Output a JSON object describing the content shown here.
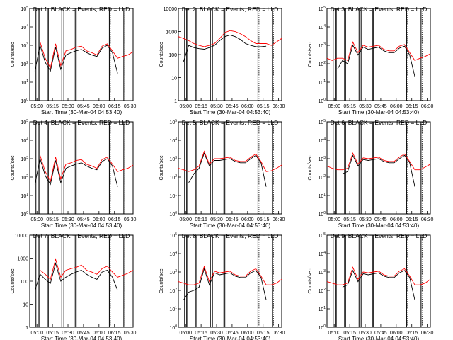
{
  "figure": {
    "ylabel": "Counts/sec",
    "xlabel": "Start Time (30-Mar-04 04:53:40)",
    "x_tick_labels": [
      "05:00",
      "05:15",
      "05:30",
      "05:45",
      "06:00",
      "06:15",
      "06:30"
    ],
    "colors": {
      "events": "#000000",
      "lld": "#ff0000"
    }
  },
  "chart_data": [
    {
      "type": "line",
      "title": "Det 1: BLACK = Events, RED = LLD",
      "ylim": [
        1,
        100000
      ],
      "ytick_labels": [
        "10^0",
        "10^1",
        "10^2",
        "10^3",
        "10^4",
        "10^5"
      ],
      "log_y": true,
      "x": [
        "04:53",
        "04:58",
        "05:03",
        "05:08",
        "05:13",
        "05:18",
        "05:23",
        "05:28",
        "05:33",
        "05:38",
        "05:43",
        "05:48",
        "05:53",
        "05:58",
        "06:03",
        "06:08",
        "06:13",
        "06:18",
        "06:23",
        "06:28",
        "06:33"
      ],
      "series": [
        {
          "name": "Events",
          "values": [
            null,
            40,
            1000,
            120,
            40,
            800,
            50,
            300,
            400,
            500,
            600,
            400,
            300,
            250,
            700,
            1000,
            400,
            30,
            null,
            null,
            null
          ]
        },
        {
          "name": "LLD",
          "values": [
            null,
            null,
            1500,
            200,
            60,
            1200,
            80,
            500,
            600,
            800,
            900,
            500,
            400,
            300,
            900,
            1200,
            500,
            200,
            250,
            300,
            450
          ]
        }
      ]
    },
    {
      "type": "line",
      "title": "Det 2: BLACK = Events, RED = LLD",
      "ylim": [
        1,
        10000
      ],
      "ytick_labels": [
        "1",
        "10",
        "100",
        "1000",
        "10000"
      ],
      "log_y": true,
      "x": [
        "04:53",
        "04:58",
        "05:03",
        "05:08",
        "05:13",
        "05:18",
        "05:23",
        "05:28",
        "05:33",
        "05:38",
        "05:43",
        "05:48",
        "05:53",
        "05:58",
        "06:03",
        "06:08",
        "06:13",
        "06:18",
        "06:23",
        "06:28",
        "06:33"
      ],
      "series": [
        {
          "name": "Events",
          "values": [
            null,
            50,
            250,
            200,
            180,
            170,
            200,
            250,
            400,
            600,
            700,
            600,
            450,
            300,
            250,
            220,
            220,
            230,
            null,
            null,
            null
          ]
        },
        {
          "name": "LLD",
          "values": [
            600,
            500,
            400,
            300,
            250,
            220,
            250,
            300,
            500,
            900,
            1100,
            1000,
            800,
            600,
            400,
            300,
            300,
            300,
            250,
            350,
            500
          ]
        }
      ]
    },
    {
      "type": "line",
      "title": "Det 3: BLACK = Events, RED = LLD",
      "ylim": [
        1,
        100000
      ],
      "ytick_labels": [
        "10^0",
        "10^1",
        "10^2",
        "10^3",
        "10^4",
        "10^5"
      ],
      "log_y": true,
      "x": [
        "04:53",
        "04:58",
        "05:03",
        "05:08",
        "05:13",
        "05:18",
        "05:23",
        "05:28",
        "05:33",
        "05:38",
        "05:43",
        "05:48",
        "05:53",
        "05:58",
        "06:03",
        "06:08",
        "06:13",
        "06:18",
        "06:23",
        "06:28",
        "06:33"
      ],
      "series": [
        {
          "name": "Events",
          "values": [
            null,
            null,
            50,
            150,
            100,
            1000,
            300,
            800,
            600,
            700,
            800,
            500,
            400,
            400,
            700,
            900,
            300,
            20,
            null,
            null,
            null
          ]
        },
        {
          "name": "LLD",
          "values": [
            200,
            150,
            200,
            200,
            150,
            1500,
            400,
            1000,
            800,
            900,
            1000,
            600,
            500,
            500,
            900,
            1100,
            400,
            150,
            200,
            250,
            350
          ]
        }
      ]
    },
    {
      "type": "line",
      "title": "Det 4: BLACK = Events, RED = LLD",
      "ylim": [
        1,
        100000
      ],
      "ytick_labels": [
        "10^0",
        "10^1",
        "10^2",
        "10^3",
        "10^4",
        "10^5"
      ],
      "log_y": true,
      "x": [
        "04:53",
        "04:58",
        "05:03",
        "05:08",
        "05:13",
        "05:18",
        "05:23",
        "05:28",
        "05:33",
        "05:38",
        "05:43",
        "05:48",
        "05:53",
        "05:58",
        "06:03",
        "06:08",
        "06:13",
        "06:18",
        "06:23",
        "06:28",
        "06:33"
      ],
      "series": [
        {
          "name": "Events",
          "values": [
            null,
            40,
            1000,
            120,
            40,
            800,
            50,
            300,
            400,
            500,
            600,
            400,
            300,
            250,
            700,
            1000,
            400,
            30,
            null,
            null,
            null
          ]
        },
        {
          "name": "LLD",
          "values": [
            null,
            null,
            1500,
            200,
            60,
            1200,
            80,
            500,
            600,
            800,
            900,
            500,
            400,
            300,
            900,
            1200,
            500,
            200,
            250,
            300,
            450
          ]
        }
      ]
    },
    {
      "type": "line",
      "title": "Det 5: BLACK = Events, RED = LLD",
      "ylim": [
        1,
        100000
      ],
      "ytick_labels": [
        "10^0",
        "10^1",
        "10^2",
        "10^3",
        "10^4",
        "10^5"
      ],
      "log_y": true,
      "x": [
        "04:53",
        "04:58",
        "05:03",
        "05:08",
        "05:13",
        "05:18",
        "05:23",
        "05:28",
        "05:33",
        "05:38",
        "05:43",
        "05:48",
        "05:53",
        "05:58",
        "06:03",
        "06:08",
        "06:13",
        "06:18",
        "06:23",
        "06:28",
        "06:33"
      ],
      "series": [
        {
          "name": "Events",
          "values": [
            null,
            null,
            50,
            150,
            300,
            2000,
            400,
            800,
            800,
            900,
            1000,
            700,
            600,
            600,
            1000,
            1500,
            600,
            30,
            null,
            null,
            null
          ]
        },
        {
          "name": "LLD",
          "values": [
            300,
            250,
            200,
            250,
            400,
            2500,
            500,
            1000,
            1000,
            1100,
            1200,
            800,
            700,
            700,
            1200,
            1800,
            700,
            200,
            220,
            300,
            450
          ]
        }
      ]
    },
    {
      "type": "line",
      "title": "Det 6: BLACK = Events, RED = LLD",
      "ylim": [
        1,
        100000
      ],
      "ytick_labels": [
        "10^0",
        "10^1",
        "10^2",
        "10^3",
        "10^4",
        "10^5"
      ],
      "log_y": true,
      "x": [
        "04:53",
        "04:58",
        "05:03",
        "05:08",
        "05:13",
        "05:18",
        "05:23",
        "05:28",
        "05:33",
        "05:38",
        "05:43",
        "05:48",
        "05:53",
        "05:58",
        "06:03",
        "06:08",
        "06:13",
        "06:18",
        "06:23",
        "06:28",
        "06:33"
      ],
      "series": [
        {
          "name": "Events",
          "values": [
            null,
            null,
            null,
            150,
            200,
            1500,
            400,
            900,
            800,
            900,
            1000,
            700,
            600,
            600,
            1000,
            1500,
            600,
            30,
            null,
            null,
            null
          ]
        },
        {
          "name": "LLD",
          "values": [
            400,
            300,
            250,
            250,
            300,
            2000,
            500,
            1100,
            1000,
            1100,
            1200,
            800,
            700,
            700,
            1200,
            1800,
            700,
            250,
            250,
            350,
            500
          ]
        }
      ]
    },
    {
      "type": "line",
      "title": "Det 7: BLACK = Events, RED = LLD",
      "ylim": [
        1,
        10000
      ],
      "ytick_labels": [
        "1",
        "10",
        "100",
        "1000",
        "10000"
      ],
      "log_y": true,
      "x": [
        "04:53",
        "04:58",
        "05:03",
        "05:08",
        "05:13",
        "05:18",
        "05:23",
        "05:28",
        "05:33",
        "05:38",
        "05:43",
        "05:48",
        "05:53",
        "05:58",
        "06:03",
        "06:08",
        "06:13",
        "06:18",
        "06:23",
        "06:28",
        "06:33"
      ],
      "series": [
        {
          "name": "Events",
          "values": [
            null,
            40,
            200,
            120,
            80,
            600,
            100,
            150,
            200,
            250,
            300,
            200,
            150,
            120,
            250,
            300,
            150,
            40,
            null,
            null,
            null
          ]
        },
        {
          "name": "LLD",
          "values": [
            null,
            null,
            300,
            200,
            120,
            900,
            150,
            300,
            350,
            400,
            500,
            300,
            250,
            200,
            350,
            450,
            250,
            150,
            180,
            220,
            300
          ]
        }
      ]
    },
    {
      "type": "line",
      "title": "Det 8: BLACK = Events, RED = LLD",
      "ylim": [
        1,
        100000
      ],
      "ytick_labels": [
        "10^0",
        "10^1",
        "10^2",
        "10^3",
        "10^4",
        "10^5"
      ],
      "log_y": true,
      "x": [
        "04:53",
        "04:58",
        "05:03",
        "05:08",
        "05:13",
        "05:18",
        "05:23",
        "05:28",
        "05:33",
        "05:38",
        "05:43",
        "05:48",
        "05:53",
        "05:58",
        "06:03",
        "06:08",
        "06:13",
        "06:18",
        "06:23",
        "06:28",
        "06:33"
      ],
      "series": [
        {
          "name": "Events",
          "values": [
            null,
            30,
            80,
            100,
            150,
            1500,
            200,
            900,
            700,
            800,
            900,
            600,
            500,
            500,
            900,
            1200,
            500,
            30,
            null,
            null,
            null
          ]
        },
        {
          "name": "LLD",
          "values": [
            300,
            250,
            200,
            200,
            250,
            2000,
            300,
            1100,
            900,
            1000,
            1100,
            700,
            600,
            600,
            1100,
            1500,
            600,
            200,
            200,
            250,
            400
          ]
        }
      ]
    },
    {
      "type": "line",
      "title": "Det 9: BLACK = Events, RED = LLD",
      "ylim": [
        1,
        100000
      ],
      "ytick_labels": [
        "10^0",
        "10^1",
        "10^2",
        "10^3",
        "10^4",
        "10^5"
      ],
      "log_y": true,
      "x": [
        "04:53",
        "04:58",
        "05:03",
        "05:08",
        "05:13",
        "05:18",
        "05:23",
        "05:28",
        "05:33",
        "05:38",
        "05:43",
        "05:48",
        "05:53",
        "05:58",
        "06:03",
        "06:08",
        "06:13",
        "06:18",
        "06:23",
        "06:28",
        "06:33"
      ],
      "series": [
        {
          "name": "Events",
          "values": [
            null,
            null,
            null,
            150,
            200,
            1200,
            300,
            800,
            700,
            800,
            900,
            600,
            500,
            500,
            900,
            1200,
            500,
            30,
            null,
            null,
            null
          ]
        },
        {
          "name": "LLD",
          "values": [
            300,
            250,
            200,
            200,
            250,
            1800,
            400,
            1000,
            900,
            1000,
            1100,
            700,
            600,
            600,
            1100,
            1500,
            600,
            200,
            200,
            250,
            400
          ]
        }
      ]
    }
  ]
}
